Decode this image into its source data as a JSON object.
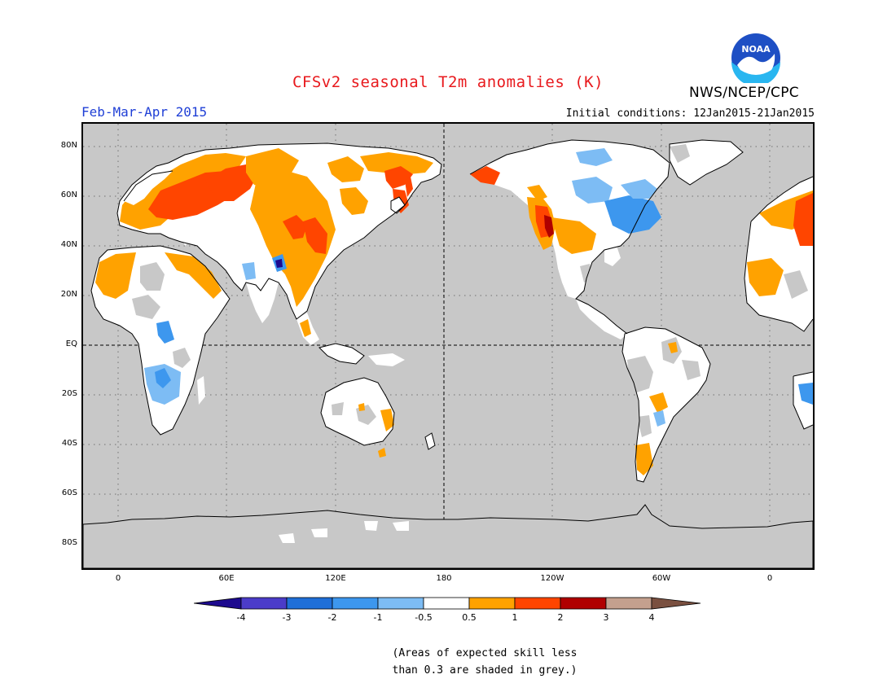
{
  "header": {
    "title": "CFSv2 seasonal T2m anomalies (K)",
    "season": "Feb-Mar-Apr 2015",
    "initial_conditions": "Initial conditions: 12Jan2015-21Jan2015",
    "agency": "NWS/NCEP/CPC",
    "logo_text": "NOAA"
  },
  "map": {
    "projection": "cylindrical equidistant",
    "lat_labels": [
      "80N",
      "60N",
      "40N",
      "20N",
      "EQ",
      "20S",
      "40S",
      "60S",
      "80S"
    ],
    "lon_labels": [
      "0",
      "60E",
      "120E",
      "180",
      "120W",
      "60W",
      "0"
    ],
    "background_color": "#c8c8c8"
  },
  "colorbar": {
    "labels": [
      "-4",
      "-3",
      "-2",
      "-1",
      "-0.5",
      "0.5",
      "1",
      "2",
      "3",
      "4"
    ],
    "colors": [
      "#1d0a8f",
      "#4b3cc9",
      "#1f6fd8",
      "#3d97ee",
      "#7dbcf4",
      "#ffffff",
      "#ffa200",
      "#ff4500",
      "#b00000",
      "#c4a08e",
      "#7a5040"
    ]
  },
  "footnote": {
    "line1": "(Areas of expected skill less",
    "line2": "than 0.3 are shaded in grey.)"
  }
}
